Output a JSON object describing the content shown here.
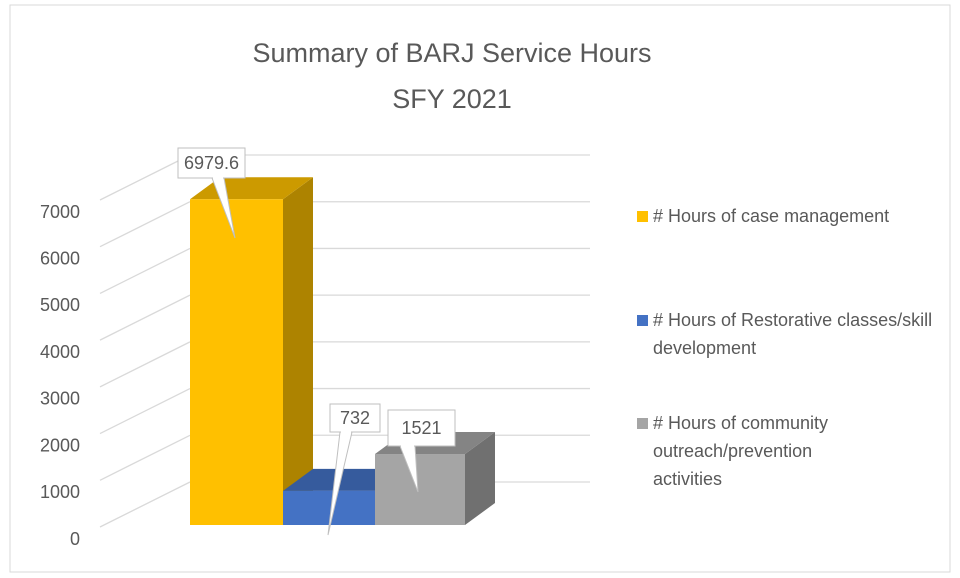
{
  "chart_data": {
    "type": "bar3d",
    "title": "Summary of BARJ Service Hours",
    "subtitle": "SFY 2021",
    "categories": [
      null
    ],
    "series": [
      {
        "name": "# Hours of case management",
        "color": "#FFC000",
        "values": [
          6979.6
        ]
      },
      {
        "name": "# Hours of Restorative classes/skill development",
        "color": "#4472C4",
        "values": [
          732
        ]
      },
      {
        "name": "# Hours of community outreach/prevention activities",
        "color": "#A5A5A5",
        "values": [
          1521
        ]
      }
    ],
    "ylim": [
      0,
      7000
    ],
    "yticks": [
      0,
      1000,
      2000,
      3000,
      4000,
      5000,
      6000,
      7000
    ],
    "grid": true,
    "legend": "right"
  }
}
